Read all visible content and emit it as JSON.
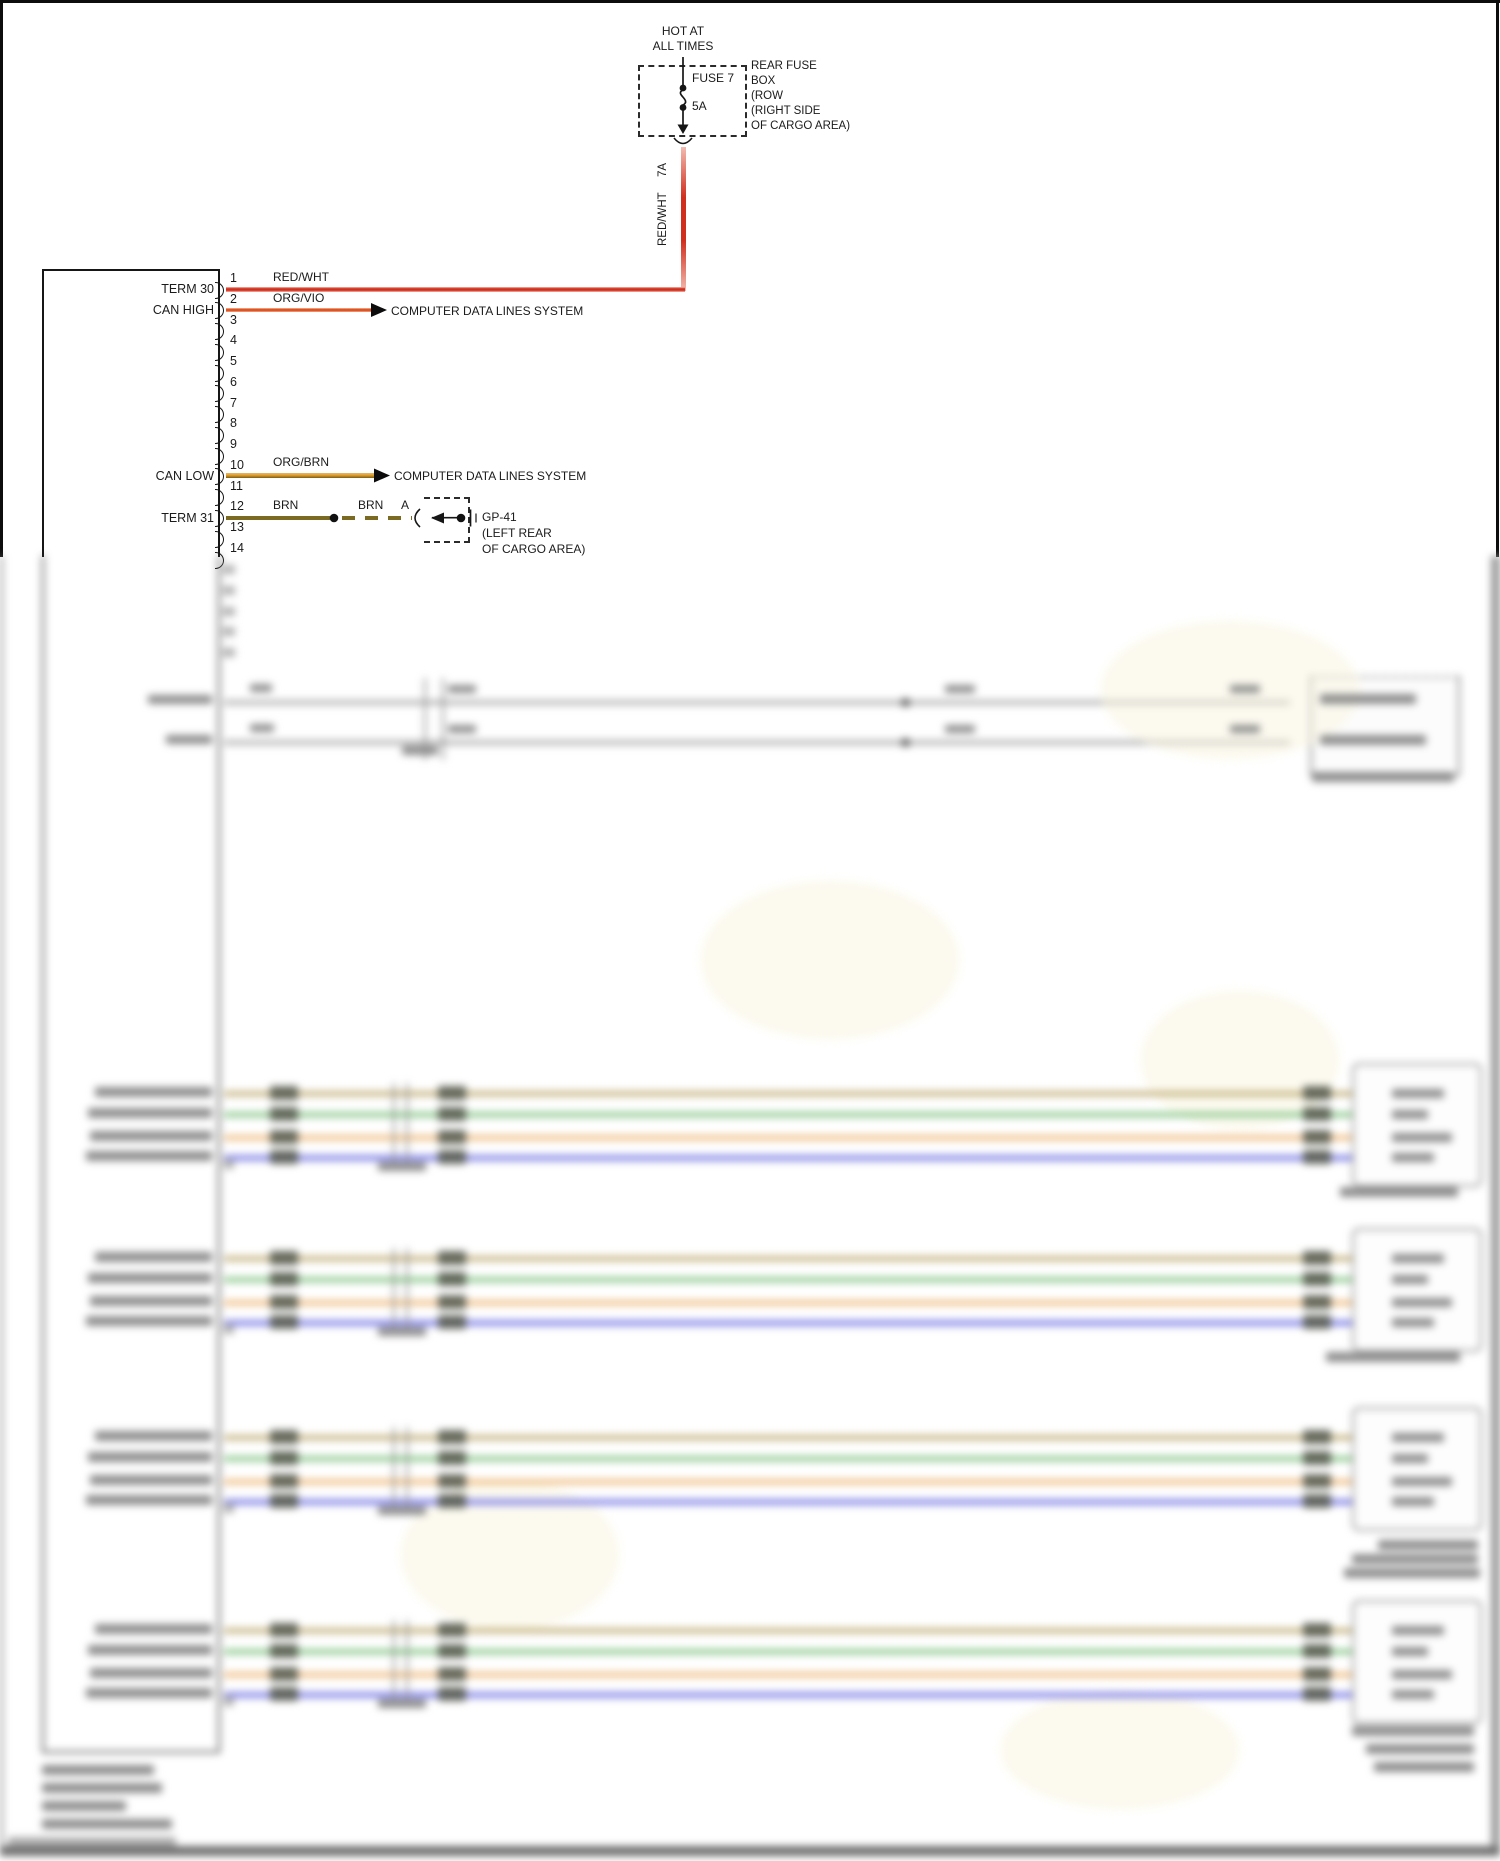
{
  "diagram": {
    "power_source": {
      "line1": "HOT AT",
      "line2": "ALL TIMES"
    },
    "fuse": {
      "name": "FUSE 7",
      "rating": "5A",
      "output_pin": "7A",
      "box_label": [
        "REAR FUSE",
        "BOX",
        "(ROW",
        "(RIGHT SIDE",
        "OF CARGO AREA)"
      ]
    },
    "module": {
      "pin_numbers": [
        "1",
        "2",
        "3",
        "4",
        "5",
        "6",
        "7",
        "8",
        "9",
        "10",
        "11",
        "12",
        "13",
        "14"
      ],
      "labels": {
        "pin1": "TERM 30",
        "pin2": "CAN HIGH",
        "pin10": "CAN LOW",
        "pin12": "TERM 31"
      }
    },
    "wires": {
      "pin1_color": "RED/WHT",
      "pin2_color": "ORG/VIO",
      "pin2_destination": "COMPUTER DATA LINES SYSTEM",
      "pin10_color": "ORG/BRN",
      "pin10_destination": "COMPUTER DATA LINES SYSTEM",
      "pin12_color_a": "BRN",
      "pin12_color_b": "BRN",
      "pin12_splice_pin": "A"
    },
    "ground": {
      "name": "GP-41",
      "location1": "(LEFT REAR",
      "location2": "OF CARGO AREA)"
    },
    "colors": {
      "wire_red": "#d12f1e",
      "wire_org_vio": "#dd4f1e",
      "wire_org_brn": "#e8a32a",
      "wire_brn": "#7b6a22",
      "wire_gray": "#b0b0b0",
      "wire_tan": "#b3a066",
      "wire_green": "#6fb56f",
      "wire_orange": "#e7a863",
      "wire_blue": "#8b8be8"
    }
  }
}
